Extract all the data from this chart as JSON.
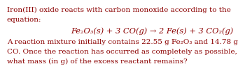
{
  "text_color": "#8B0000",
  "bg_color": "#ffffff",
  "font_size_body": 7.5,
  "font_size_eq": 8.2,
  "line1": "Iron(III) oxide reacts with carbon monoxide according to the",
  "line2": "equation:",
  "equation": "Fe₂O₃(s) + 3 CO(g) → 2 Fe(s) + 3 CO₂(g)",
  "line4": "A reaction mixture initially contains 22.55 g Fe₂O₃ and 14.78 g",
  "line5": "CO. Once the reaction has occurred as completely as possible,",
  "line6": "what mass (in g) of the excess reactant remains?"
}
